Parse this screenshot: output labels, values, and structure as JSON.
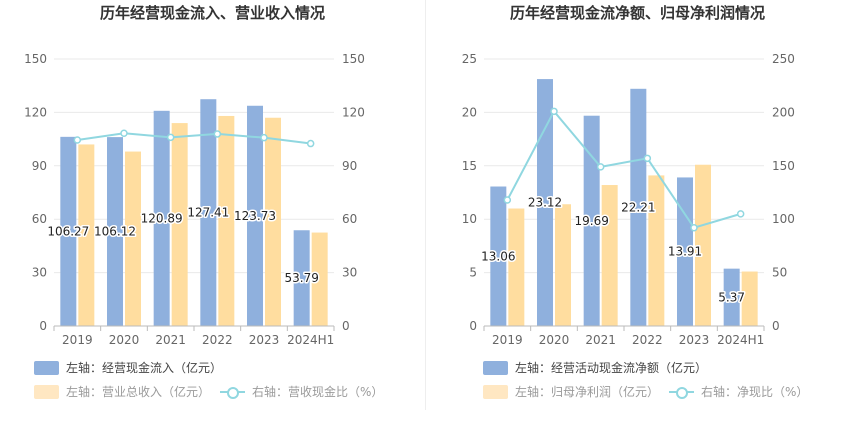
{
  "colors": {
    "bar1": "#8fb0dd",
    "bar2": "#ffdd9f",
    "line": "#90d7e0",
    "grid": "#e9e9e9",
    "axis": "#bbbbbb",
    "tick": "#666666"
  },
  "chart_data": [
    {
      "type": "bar",
      "title": "历年经营现金流入、营业收入情况",
      "categories": [
        "2019",
        "2020",
        "2021",
        "2022",
        "2023",
        "2024H1"
      ],
      "left_axis": {
        "ylim": [
          0,
          150
        ],
        "ticks": [
          "0",
          "30",
          "60",
          "90",
          "120",
          "150"
        ]
      },
      "right_axis": {
        "ylim": [
          0,
          150
        ],
        "ticks": [
          "0",
          "30",
          "60",
          "90",
          "120",
          "150"
        ]
      },
      "series": [
        {
          "name": "左轴：经营现金流入（亿元）",
          "axis": "left",
          "kind": "bar",
          "values": [
            106.27,
            106.12,
            120.89,
            127.41,
            123.73,
            53.79
          ],
          "labels": [
            "106.27",
            "106.12",
            "120.89",
            "127.41",
            "123.73",
            "53.79"
          ]
        },
        {
          "name": "左轴：营业总收入（亿元）",
          "axis": "left",
          "kind": "bar",
          "values": [
            102,
            98,
            114,
            118,
            117,
            52.5
          ]
        },
        {
          "name": "右轴：营收现金比（%）",
          "axis": "right",
          "kind": "line",
          "values": [
            104.5,
            108.3,
            106.0,
            107.9,
            105.8,
            102.5
          ]
        }
      ]
    },
    {
      "type": "bar",
      "title": "历年经营现金流净额、归母净利润情况",
      "categories": [
        "2019",
        "2020",
        "2021",
        "2022",
        "2023",
        "2024H1"
      ],
      "left_axis": {
        "ylim": [
          0,
          25
        ],
        "ticks": [
          "0",
          "5",
          "10",
          "15",
          "20",
          "25"
        ]
      },
      "right_axis": {
        "ylim": [
          0,
          250
        ],
        "ticks": [
          "0",
          "50",
          "100",
          "150",
          "200",
          "250"
        ]
      },
      "series": [
        {
          "name": "左轴：经营活动现金流净额（亿元）",
          "axis": "left",
          "kind": "bar",
          "values": [
            13.06,
            23.12,
            19.69,
            22.21,
            13.91,
            5.37
          ],
          "labels": [
            "13.06",
            "23.12",
            "19.69",
            "22.21",
            "13.91",
            "5.37"
          ]
        },
        {
          "name": "左轴：归母净利润（亿元）",
          "axis": "left",
          "kind": "bar",
          "values": [
            11.0,
            11.4,
            13.2,
            14.1,
            15.1,
            5.1
          ]
        },
        {
          "name": "右轴：净现比（%）",
          "axis": "right",
          "kind": "line",
          "values": [
            118,
            201,
            149,
            157,
            92,
            105
          ]
        }
      ]
    }
  ]
}
